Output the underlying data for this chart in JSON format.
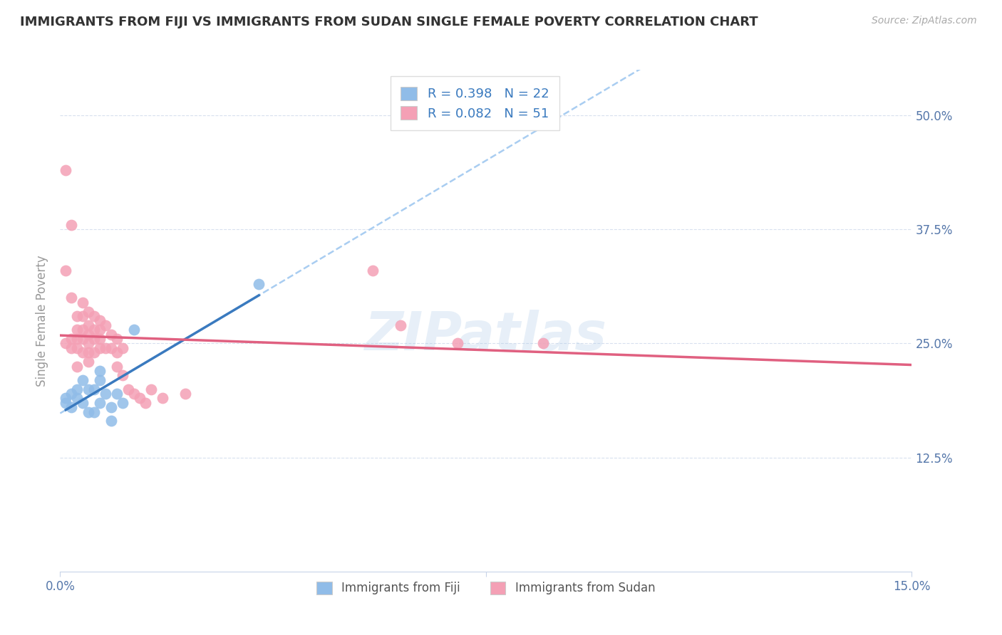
{
  "title": "IMMIGRANTS FROM FIJI VS IMMIGRANTS FROM SUDAN SINGLE FEMALE POVERTY CORRELATION CHART",
  "source": "Source: ZipAtlas.com",
  "ylabel": "Single Female Poverty",
  "xlim": [
    0.0,
    0.15
  ],
  "ylim": [
    0.0,
    0.55
  ],
  "ytick_positions": [
    0.125,
    0.25,
    0.375,
    0.5
  ],
  "ytick_labels": [
    "12.5%",
    "25.0%",
    "37.5%",
    "50.0%"
  ],
  "fiji_R": 0.398,
  "fiji_N": 22,
  "sudan_R": 0.082,
  "sudan_N": 51,
  "fiji_color": "#90bce8",
  "sudan_color": "#f4a0b5",
  "fiji_line_color": "#3a7abf",
  "sudan_line_color": "#e06080",
  "fiji_dash_color": "#a0c8f0",
  "background_color": "#ffffff",
  "grid_color": "#c8d4e8",
  "title_color": "#333333",
  "axis_label_color": "#5577aa",
  "watermark": "ZIPatlas",
  "fiji_x": [
    0.001,
    0.001,
    0.002,
    0.002,
    0.003,
    0.003,
    0.004,
    0.004,
    0.005,
    0.005,
    0.006,
    0.006,
    0.007,
    0.007,
    0.007,
    0.008,
    0.009,
    0.009,
    0.01,
    0.011,
    0.013,
    0.035
  ],
  "fiji_y": [
    0.19,
    0.185,
    0.195,
    0.18,
    0.19,
    0.2,
    0.185,
    0.21,
    0.175,
    0.2,
    0.175,
    0.2,
    0.185,
    0.21,
    0.22,
    0.195,
    0.165,
    0.18,
    0.195,
    0.185,
    0.265,
    0.315
  ],
  "sudan_x": [
    0.001,
    0.001,
    0.001,
    0.002,
    0.002,
    0.002,
    0.002,
    0.003,
    0.003,
    0.003,
    0.003,
    0.003,
    0.004,
    0.004,
    0.004,
    0.004,
    0.004,
    0.005,
    0.005,
    0.005,
    0.005,
    0.005,
    0.005,
    0.006,
    0.006,
    0.006,
    0.006,
    0.007,
    0.007,
    0.007,
    0.007,
    0.008,
    0.008,
    0.009,
    0.009,
    0.01,
    0.01,
    0.01,
    0.011,
    0.011,
    0.012,
    0.013,
    0.014,
    0.015,
    0.016,
    0.018,
    0.022,
    0.055,
    0.06,
    0.07,
    0.085
  ],
  "sudan_y": [
    0.44,
    0.33,
    0.25,
    0.38,
    0.3,
    0.255,
    0.245,
    0.28,
    0.265,
    0.255,
    0.245,
    0.225,
    0.295,
    0.28,
    0.265,
    0.255,
    0.24,
    0.285,
    0.27,
    0.26,
    0.25,
    0.24,
    0.23,
    0.28,
    0.265,
    0.255,
    0.24,
    0.275,
    0.265,
    0.255,
    0.245,
    0.27,
    0.245,
    0.26,
    0.245,
    0.255,
    0.24,
    0.225,
    0.245,
    0.215,
    0.2,
    0.195,
    0.19,
    0.185,
    0.2,
    0.19,
    0.195,
    0.33,
    0.27,
    0.25,
    0.25
  ]
}
